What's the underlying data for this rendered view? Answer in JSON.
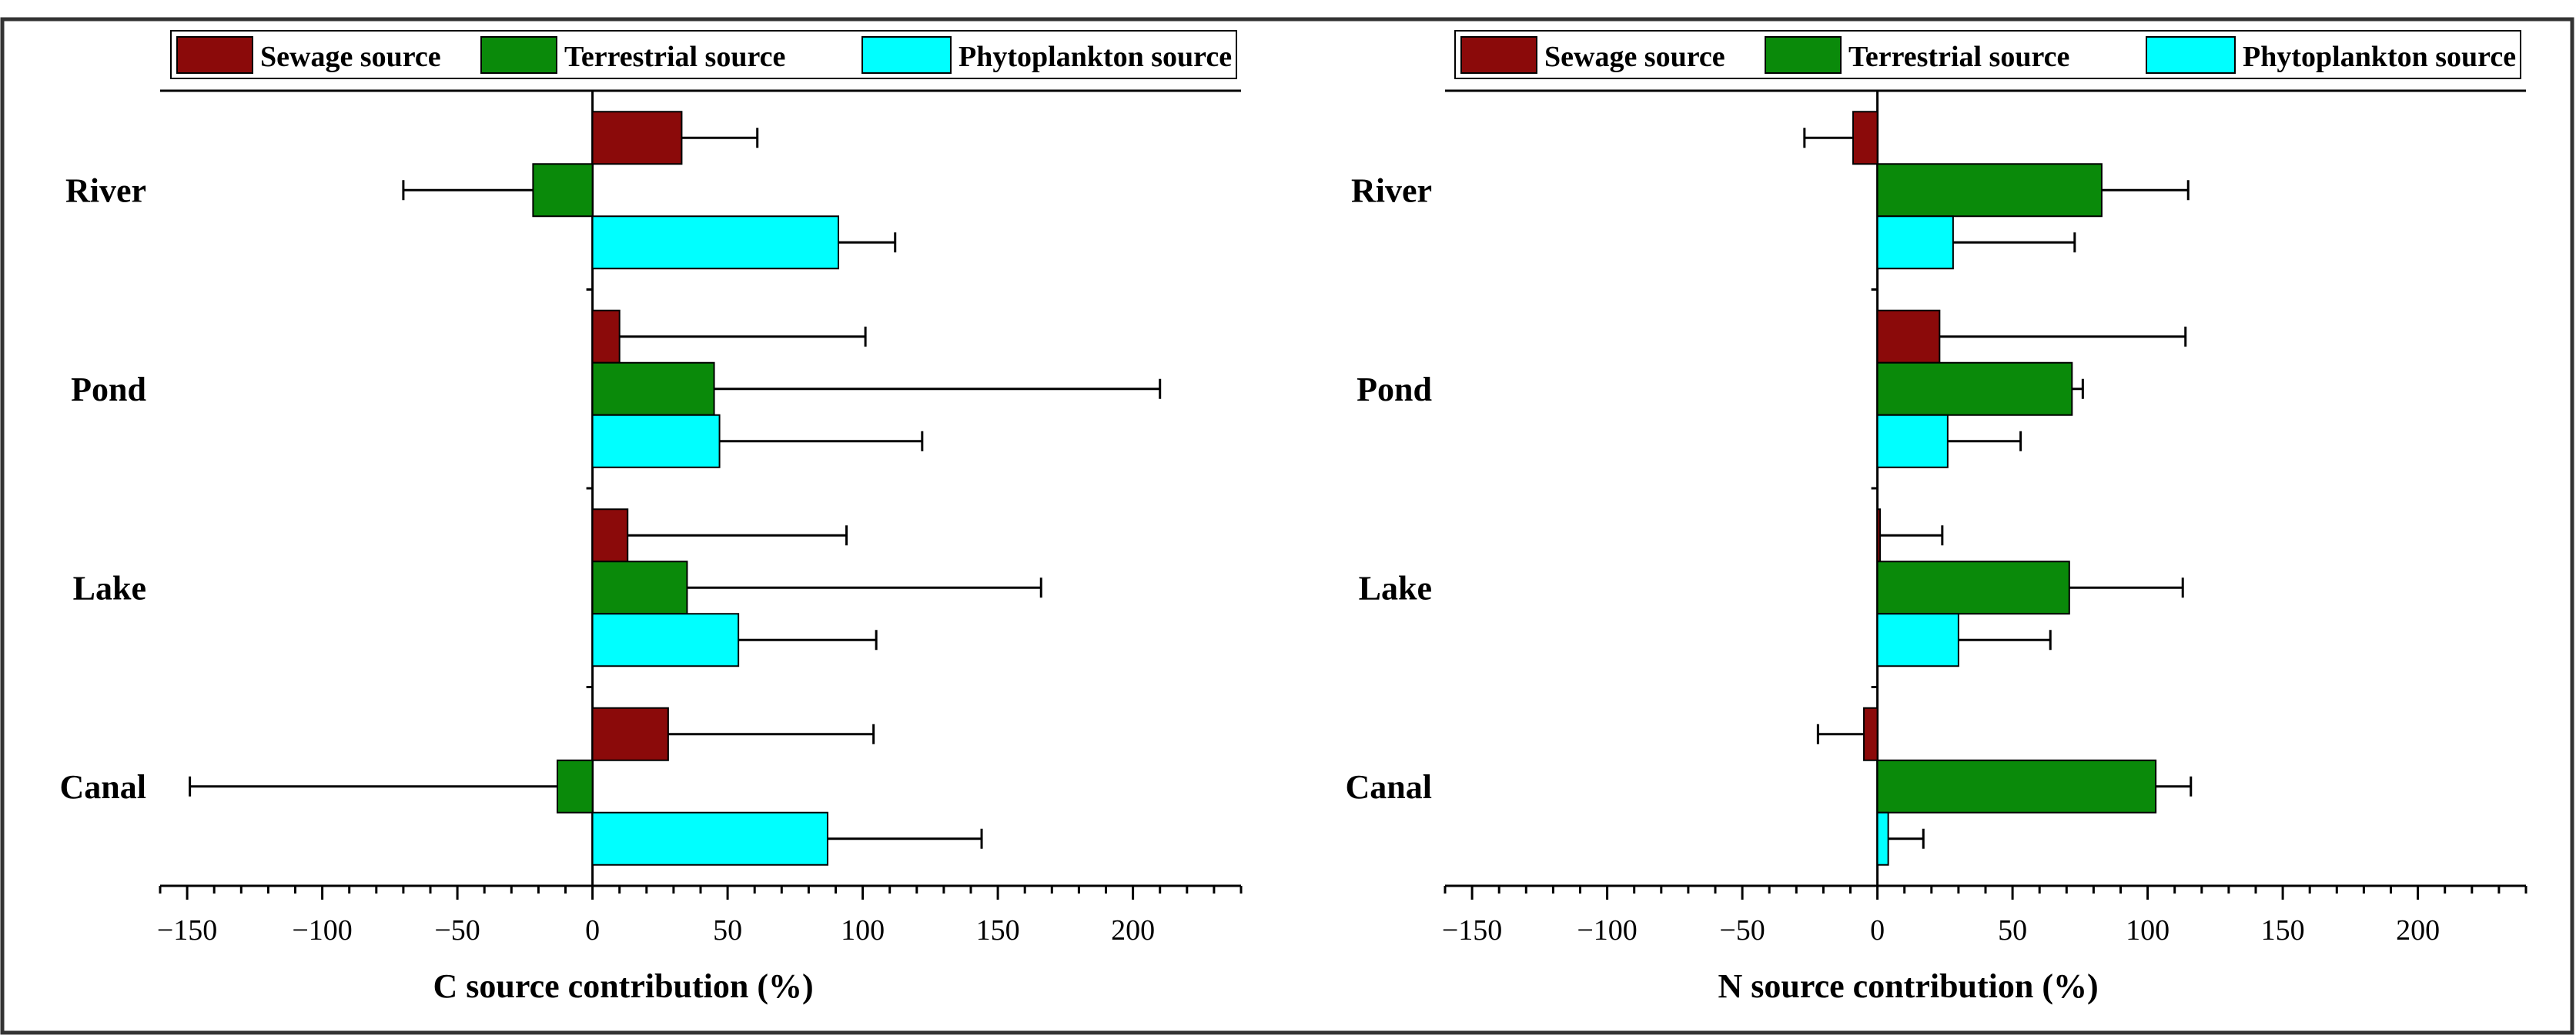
{
  "colors": {
    "sewage": "#8b0a0a",
    "terrestrial": "#0a8a0a",
    "phytoplankton": "#00ffff",
    "axis": "#000000",
    "frame": "#333333"
  },
  "chart_data": [
    {
      "type": "bar",
      "orientation": "horizontal",
      "title": "",
      "xlabel": "C source contribution (%)",
      "ylabel": "",
      "xlim": [
        -160,
        240
      ],
      "xticks": [
        -150,
        -100,
        -50,
        0,
        50,
        100,
        150,
        200
      ],
      "xtick_labels": [
        "−150",
        "−100",
        "−50",
        "0",
        "50",
        "100",
        "150",
        "200"
      ],
      "categories": [
        "River",
        "Pond",
        "Lake",
        "Canal"
      ],
      "legend": [
        "Sewage source",
        "Terrestrial source",
        "Phytoplankton source"
      ],
      "legend_position": "top-center",
      "series": [
        {
          "name": "Sewage source",
          "color_key": "sewage",
          "values": [
            33,
            10,
            13,
            28
          ],
          "errors": [
            28,
            91,
            81,
            76
          ]
        },
        {
          "name": "Terrestrial source",
          "color_key": "terrestrial",
          "values": [
            -22,
            45,
            35,
            -13
          ],
          "errors": [
            48,
            165,
            131,
            136
          ]
        },
        {
          "name": "Phytoplankton source",
          "color_key": "phytoplankton",
          "values": [
            91,
            47,
            54,
            87
          ],
          "errors": [
            21,
            75,
            51,
            57
          ]
        }
      ]
    },
    {
      "type": "bar",
      "orientation": "horizontal",
      "title": "",
      "xlabel": "N source contribution (%)",
      "ylabel": "",
      "xlim": [
        -160,
        240
      ],
      "xticks": [
        -150,
        -100,
        -50,
        0,
        50,
        100,
        150,
        200
      ],
      "xtick_labels": [
        "−150",
        "−100",
        "−50",
        "0",
        "50",
        "100",
        "150",
        "200"
      ],
      "categories": [
        "River",
        "Pond",
        "Lake",
        "Canal"
      ],
      "legend": [
        "Sewage source",
        "Terrestrial source",
        "Phytoplankton source"
      ],
      "legend_position": "top-center",
      "series": [
        {
          "name": "Sewage source",
          "color_key": "sewage",
          "values": [
            -9,
            23,
            1,
            -5
          ],
          "errors": [
            18,
            91,
            23,
            17
          ]
        },
        {
          "name": "Terrestrial source",
          "color_key": "terrestrial",
          "values": [
            83,
            72,
            71,
            103
          ],
          "errors": [
            32,
            4,
            42,
            13
          ]
        },
        {
          "name": "Phytoplankton source",
          "color_key": "phytoplankton",
          "values": [
            28,
            26,
            30,
            4
          ],
          "errors": [
            45,
            27,
            34,
            13
          ]
        }
      ]
    }
  ]
}
